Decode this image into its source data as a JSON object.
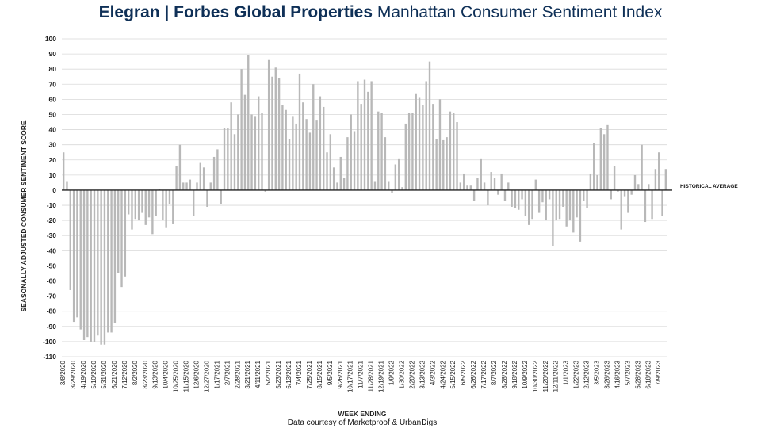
{
  "title": {
    "brand": "Elegran | Forbes Global Properties",
    "rest": "Manhattan Consumer Sentiment Index"
  },
  "credit": "Data courtesy of Marketproof & UrbanDigs",
  "colors": {
    "title": "#0f3057",
    "bar": "#b8b8b8",
    "grid": "#d9d9d9",
    "zero_line": "#222222"
  },
  "chart_data": {
    "type": "bar",
    "xlabel": "WEEK ENDING",
    "ylabel": "SEASONALLY ADJUSTED CONSUMER SENTIMENT SCORE",
    "ylim": [
      -110,
      100
    ],
    "yticks": [
      100,
      90,
      80,
      70,
      60,
      50,
      40,
      30,
      20,
      10,
      0,
      -10,
      -20,
      -30,
      -40,
      -50,
      -60,
      -70,
      -80,
      -90,
      -100,
      -110
    ],
    "grid": true,
    "reference_line": {
      "label": "HISTORICAL AVERAGE",
      "value": 0
    },
    "x_tick_labels": [
      "3/8/2020",
      "3/29/2020",
      "4/19/2020",
      "5/10/2020",
      "5/31/2020",
      "6/21/2020",
      "7/12/2020",
      "8/2/2020",
      "8/23/2020",
      "9/13/2020",
      "10/4/2020",
      "10/25/2020",
      "11/15/2020",
      "12/6/2020",
      "12/27/2020",
      "1/17/2021",
      "2/7/2021",
      "2/28/2021",
      "3/21/2021",
      "4/11/2021",
      "5/2/2021",
      "5/23/2021",
      "6/13/2021",
      "7/4/2021",
      "7/25/2021",
      "8/15/2021",
      "9/5/2021",
      "9/26/2021",
      "10/17/2021",
      "11/7/2021",
      "11/28/2021",
      "12/19/2021",
      "1/9/2022",
      "1/30/2022",
      "2/20/2022",
      "3/13/2022",
      "4/3/2022",
      "4/24/2022",
      "5/15/2022",
      "6/5/2022",
      "6/26/2022",
      "7/17/2022",
      "8/7/2022",
      "8/28/2022",
      "9/18/2022",
      "10/9/2022",
      "10/30/2022",
      "11/20/2022",
      "12/11/2022",
      "1/1/2023",
      "1/22/2023",
      "2/12/2023",
      "3/5/2023",
      "3/26/2023",
      "4/16/2023",
      "5/7/2023",
      "5/28/2023",
      "6/18/2023",
      "7/9/2023"
    ],
    "values": [
      25,
      6,
      -66,
      -87,
      -84,
      -92,
      -99,
      -97,
      -100,
      -100,
      -96,
      -102,
      -102,
      -94,
      -94,
      -88,
      -55,
      -64,
      -57,
      -16,
      -26,
      -19,
      -20,
      -15,
      -23,
      -18,
      -29,
      -17,
      1,
      -20,
      -25,
      -9,
      -22,
      16,
      30,
      5,
      5,
      7,
      -17,
      5,
      18,
      15,
      -11,
      5,
      22,
      27,
      -9,
      41,
      41,
      58,
      37,
      50,
      80,
      63,
      89,
      50,
      49,
      62,
      51,
      -1,
      86,
      75,
      81,
      74,
      56,
      53,
      34,
      49,
      44,
      77,
      58,
      47,
      38,
      70,
      46,
      62,
      55,
      25,
      37,
      15,
      5,
      22,
      8,
      35,
      50,
      39,
      72,
      57,
      73,
      65,
      72,
      6,
      52,
      51,
      35,
      6,
      -2,
      17,
      21,
      2,
      44,
      51,
      51,
      64,
      61,
      56,
      72,
      85,
      57,
      34,
      60,
      33,
      35,
      52,
      51,
      45,
      5,
      11,
      3,
      3,
      -7,
      8,
      21,
      5,
      -10,
      12,
      8,
      -3,
      11,
      -7,
      5,
      -11,
      -12,
      -13,
      -6,
      -17,
      -23,
      -19,
      7,
      -15,
      -8,
      -20,
      -6,
      -37,
      -20,
      -19,
      -11,
      -24,
      -20,
      -28,
      -18,
      -34,
      -7,
      -12,
      11,
      31,
      10,
      41,
      37,
      43,
      -6,
      16,
      -1,
      -26,
      -4,
      -15,
      -3,
      10,
      4,
      30,
      -21,
      4,
      -19,
      14,
      25,
      -17,
      14
    ]
  }
}
